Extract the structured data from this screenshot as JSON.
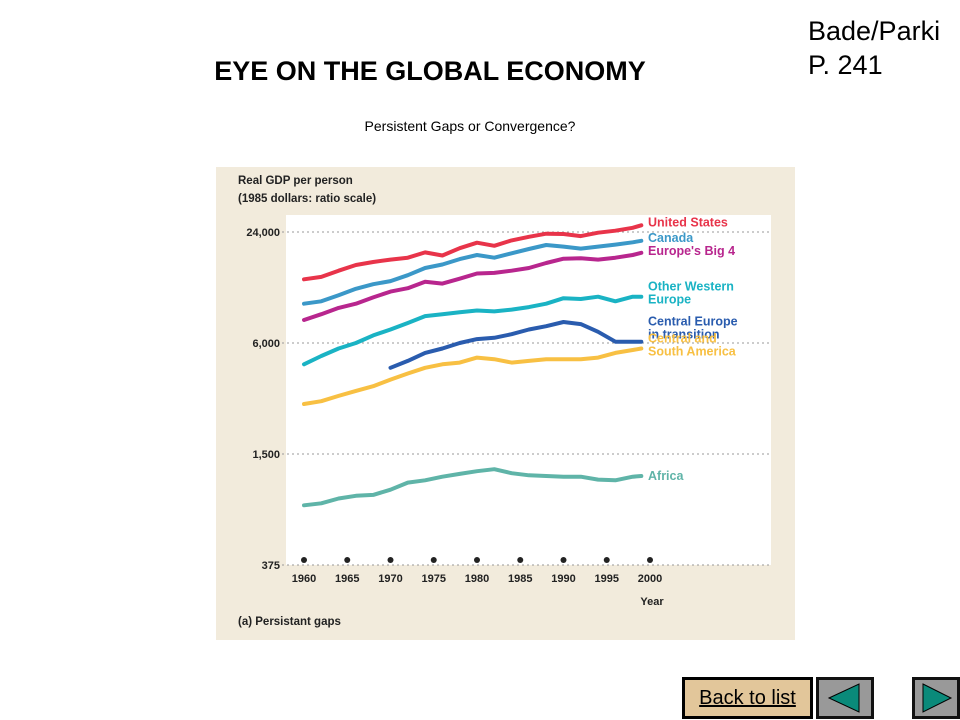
{
  "slide": {
    "title": "EYE ON THE GLOBAL ECONOMY",
    "subtitle": "Persistent Gaps or Convergence?",
    "ref_line1": "Bade/Parki",
    "ref_line2": "P. 241",
    "back_label": "Back to list"
  },
  "colors": {
    "panel": "#f2ebdc",
    "plot": "#ffffff",
    "United States": "#e8344a",
    "Canada": "#3b98c8",
    "Europe's Big 4": "#b8268e",
    "Other Western Europe": "#1ab3c4",
    "Central Europe in transition": "#2a5cae",
    "Central and South America": "#f8c043",
    "Africa": "#5fb4a8"
  },
  "chart_data": {
    "type": "line",
    "title": "Real GDP per person",
    "title_line2": "(1985 dollars: ratio scale)",
    "xlabel": "Year",
    "caption": "(a) Persistant gaps",
    "y_scale": "log",
    "ylim": [
      375,
      24000
    ],
    "y_ticks": [
      24000,
      6000,
      1500,
      375
    ],
    "y_tick_labels": [
      "24,000",
      "6,000",
      "1,500",
      "375"
    ],
    "x_ticks": [
      1960,
      1965,
      1970,
      1975,
      1980,
      1985,
      1990,
      1995,
      2000
    ],
    "xlim": [
      1960,
      2000
    ],
    "x": [
      1960,
      1962,
      1964,
      1966,
      1968,
      1970,
      1972,
      1974,
      1976,
      1978,
      1980,
      1982,
      1984,
      1986,
      1988,
      1990,
      1992,
      1994,
      1996,
      1998,
      1999
    ],
    "series": [
      {
        "name": "United States",
        "label_lines": [
          "United States"
        ],
        "x_start": 1960,
        "values": [
          13300,
          13700,
          14800,
          15900,
          16500,
          17000,
          17400,
          18600,
          17900,
          19600,
          21000,
          20200,
          21600,
          22600,
          23500,
          23400,
          22800,
          23800,
          24400,
          25300,
          26100
        ]
      },
      {
        "name": "Canada",
        "label_lines": [
          "Canada"
        ],
        "x_start": 1960,
        "values": [
          9800,
          10100,
          10900,
          11800,
          12500,
          13000,
          14000,
          15300,
          16000,
          17100,
          18000,
          17400,
          18400,
          19400,
          20400,
          20000,
          19500,
          20000,
          20500,
          21100,
          21500
        ]
      },
      {
        "name": "Europe's Big 4",
        "label_lines": [
          "Europe's Big 4"
        ],
        "x_start": 1960,
        "values": [
          8000,
          8600,
          9300,
          9800,
          10600,
          11400,
          11900,
          12900,
          12600,
          13400,
          14300,
          14400,
          14800,
          15300,
          16300,
          17200,
          17300,
          17000,
          17400,
          18000,
          18500
        ]
      },
      {
        "name": "Other Western Europe",
        "label_lines": [
          "Other Western",
          "Europe"
        ],
        "x_start": 1960,
        "values": [
          4600,
          5100,
          5600,
          6000,
          6600,
          7100,
          7700,
          8400,
          8600,
          8800,
          9000,
          8900,
          9100,
          9400,
          9800,
          10500,
          10400,
          10700,
          10100,
          10700,
          10700
        ]
      },
      {
        "name": "Central Europe in transition",
        "label_lines": [
          "Central Europe",
          "in transition"
        ],
        "x_start": 1970,
        "values": [
          null,
          null,
          null,
          null,
          null,
          4400,
          4800,
          5300,
          5600,
          6000,
          6300,
          6400,
          6700,
          7100,
          7400,
          7800,
          7600,
          6900,
          6100,
          6100,
          6100
        ]
      },
      {
        "name": "Central and South America",
        "label_lines": [
          "Central and",
          "South America"
        ],
        "x_start": 1960,
        "values": [
          2800,
          2900,
          3100,
          3300,
          3500,
          3800,
          4100,
          4400,
          4600,
          4700,
          5000,
          4900,
          4700,
          4800,
          4900,
          4900,
          4900,
          5000,
          5300,
          5500,
          5600
        ]
      },
      {
        "name": "Africa",
        "label_lines": [
          "Africa"
        ],
        "x_start": 1960,
        "values": [
          790,
          810,
          860,
          890,
          900,
          960,
          1050,
          1080,
          1130,
          1170,
          1210,
          1240,
          1180,
          1150,
          1140,
          1130,
          1130,
          1090,
          1080,
          1130,
          1140
        ]
      }
    ]
  }
}
